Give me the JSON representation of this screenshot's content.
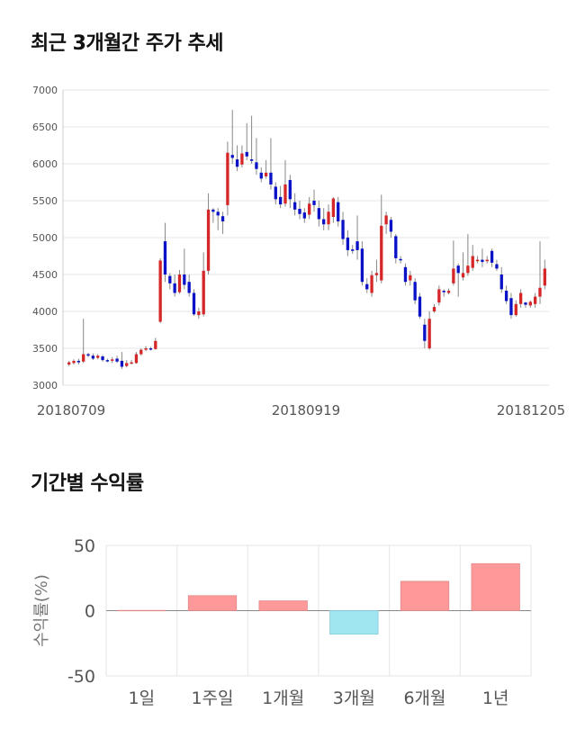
{
  "sections": {
    "price_title": "최근 3개월간 주가 추세",
    "return_title": "기간별 수익률"
  },
  "chart_data": [
    {
      "type": "candlestick",
      "title": "최근 3개월간 주가 추세",
      "ylim": [
        3000,
        7000
      ],
      "y_ticks": [
        "7000",
        "6500",
        "6000",
        "5500",
        "5000",
        "4500",
        "4000",
        "3500",
        "3000"
      ],
      "x_ticks": [
        "20180709",
        "20180919",
        "20181205"
      ],
      "grid": true,
      "colors": {
        "up": "#d62728",
        "down": "#0a12c8",
        "wick": "#888888"
      },
      "candles": [
        [
          3280,
          3310,
          3260,
          3330
        ],
        [
          3300,
          3330,
          3280,
          3350
        ],
        [
          3330,
          3310,
          3280,
          3360
        ],
        [
          3320,
          3420,
          3300,
          3900
        ],
        [
          3420,
          3400,
          3380,
          3440
        ],
        [
          3400,
          3360,
          3340,
          3430
        ],
        [
          3370,
          3400,
          3350,
          3420
        ],
        [
          3390,
          3340,
          3320,
          3410
        ],
        [
          3340,
          3330,
          3310,
          3360
        ],
        [
          3330,
          3350,
          3300,
          3380
        ],
        [
          3360,
          3320,
          3300,
          3400
        ],
        [
          3330,
          3250,
          3220,
          3450
        ],
        [
          3260,
          3300,
          3240,
          3340
        ],
        [
          3300,
          3310,
          3280,
          3340
        ],
        [
          3300,
          3420,
          3290,
          3450
        ],
        [
          3420,
          3480,
          3400,
          3500
        ],
        [
          3480,
          3500,
          3460,
          3530
        ],
        [
          3500,
          3490,
          3470,
          3520
        ],
        [
          3490,
          3600,
          3480,
          3640
        ],
        [
          3860,
          4690,
          3840,
          4720
        ],
        [
          4950,
          4500,
          4400,
          5200
        ],
        [
          4480,
          4380,
          4300,
          4520
        ],
        [
          4380,
          4250,
          4200,
          4500
        ],
        [
          4260,
          4500,
          4240,
          4560
        ],
        [
          4500,
          4360,
          4300,
          4850
        ],
        [
          4400,
          4250,
          4200,
          4500
        ],
        [
          4250,
          3960,
          3940,
          4300
        ],
        [
          3950,
          4000,
          3900,
          4050
        ],
        [
          3960,
          4550,
          3930,
          4800
        ],
        [
          4550,
          5380,
          4500,
          5600
        ],
        [
          5380,
          5350,
          5200,
          5400
        ],
        [
          5350,
          5300,
          5100,
          5400
        ],
        [
          5290,
          5220,
          5050,
          5350
        ],
        [
          5440,
          6150,
          5300,
          6300
        ],
        [
          6120,
          6080,
          6000,
          6730
        ],
        [
          6060,
          5960,
          5900,
          6250
        ],
        [
          5990,
          6140,
          5950,
          6250
        ],
        [
          6160,
          6100,
          6050,
          6550
        ],
        [
          6060,
          6040,
          6000,
          6650
        ],
        [
          6020,
          5930,
          5850,
          6350
        ],
        [
          5880,
          5800,
          5750,
          5950
        ],
        [
          5830,
          5880,
          5800,
          6050
        ],
        [
          5880,
          5720,
          5650,
          6350
        ],
        [
          5690,
          5520,
          5450,
          5750
        ],
        [
          5550,
          5450,
          5400,
          5700
        ],
        [
          5460,
          5720,
          5420,
          6050
        ],
        [
          5780,
          5520,
          5400,
          5850
        ],
        [
          5480,
          5380,
          5300,
          5600
        ],
        [
          5390,
          5320,
          5250,
          5500
        ],
        [
          5340,
          5260,
          5200,
          5400
        ],
        [
          5310,
          5460,
          5250,
          5550
        ],
        [
          5500,
          5440,
          5350,
          5650
        ],
        [
          5400,
          5250,
          5150,
          5500
        ],
        [
          5250,
          5180,
          5100,
          5400
        ],
        [
          5180,
          5350,
          5100,
          5450
        ],
        [
          5280,
          5530,
          5200,
          5550
        ],
        [
          5480,
          5220,
          5150,
          5550
        ],
        [
          5240,
          4980,
          4900,
          5350
        ],
        [
          5000,
          4830,
          4750,
          5100
        ],
        [
          4840,
          4820,
          4780,
          4900
        ],
        [
          4950,
          4830,
          4700,
          5300
        ],
        [
          4850,
          4400,
          4350,
          4950
        ],
        [
          4370,
          4300,
          4250,
          4450
        ],
        [
          4250,
          4490,
          4200,
          4550
        ],
        [
          4490,
          4520,
          4400,
          4700
        ],
        [
          4420,
          5160,
          4380,
          5580
        ],
        [
          5180,
          5300,
          5050,
          5350
        ],
        [
          5240,
          5080,
          5000,
          5280
        ],
        [
          5020,
          4720,
          4650,
          5050
        ],
        [
          4710,
          4700,
          4650,
          4750
        ],
        [
          4600,
          4400,
          4350,
          4650
        ],
        [
          4420,
          4490,
          4350,
          4550
        ],
        [
          4400,
          4150,
          4100,
          4450
        ],
        [
          4200,
          3930,
          3900,
          4250
        ],
        [
          3820,
          3600,
          3500,
          3900
        ],
        [
          3500,
          3900,
          3480,
          4000
        ],
        [
          4000,
          4060,
          3980,
          4100
        ],
        [
          4120,
          4300,
          4080,
          4350
        ],
        [
          4280,
          4260,
          4200,
          4300
        ],
        [
          4250,
          4280,
          4230,
          4310
        ],
        [
          4380,
          4580,
          4350,
          4960
        ],
        [
          4620,
          4520,
          4200,
          4650
        ],
        [
          4460,
          4520,
          4420,
          4800
        ],
        [
          4520,
          4620,
          4480,
          5050
        ],
        [
          4590,
          4750,
          4550,
          4900
        ],
        [
          4680,
          4700,
          4650,
          4750
        ],
        [
          4700,
          4670,
          4600,
          4850
        ],
        [
          4680,
          4700,
          4650,
          4750
        ],
        [
          4820,
          4660,
          4600,
          4850
        ],
        [
          4640,
          4580,
          4550,
          4700
        ],
        [
          4500,
          4300,
          4250,
          4600
        ],
        [
          4280,
          4140,
          4100,
          4350
        ],
        [
          4180,
          3950,
          3900,
          4250
        ],
        [
          3950,
          4100,
          3930,
          4150
        ],
        [
          4100,
          4250,
          4050,
          4300
        ],
        [
          4120,
          4090,
          4050,
          4130
        ],
        [
          4080,
          4130,
          4050,
          4150
        ],
        [
          4100,
          4200,
          4050,
          4250
        ],
        [
          4200,
          4320,
          4100,
          4950
        ],
        [
          4350,
          4580,
          4300,
          4700
        ]
      ]
    },
    {
      "type": "bar",
      "title": "기간별 수익률",
      "ylabel": "수익률(%)",
      "categories": [
        "1일",
        "1주일",
        "1개월",
        "3개월",
        "6개월",
        "1년"
      ],
      "values": [
        0.2,
        11.5,
        7.5,
        -18,
        22.5,
        36
      ],
      "ylim": [
        -50,
        50
      ],
      "y_ticks": [
        "50",
        "0",
        "-50"
      ],
      "grid": true,
      "colors": {
        "positive": "#ff9999",
        "negative": "#a0e6f0"
      }
    }
  ]
}
